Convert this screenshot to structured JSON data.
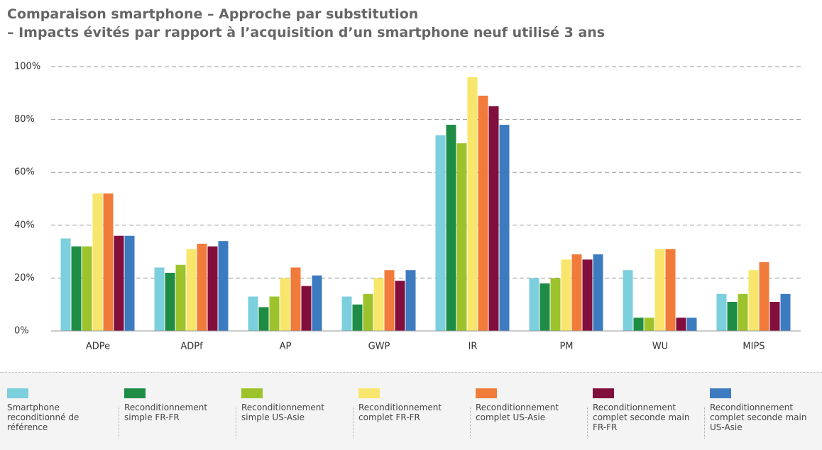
{
  "chart_data": {
    "type": "bar",
    "title": "Comparaison smartphone – Approche par substitution",
    "subtitle": "– Impacts évités par rapport à l’acquisition d’un smartphone neuf utilisé 3 ans",
    "categories": [
      "ADPe",
      "ADPf",
      "AP",
      "GWP",
      "IR",
      "PM",
      "WU",
      "MIPS"
    ],
    "series": [
      {
        "name": "Smartphone reconditionné de référence",
        "color": "#7ccfdc",
        "values": [
          35,
          24,
          13,
          13,
          74,
          20,
          23,
          14
        ]
      },
      {
        "name": "Reconditionnement simple FR-FR",
        "color": "#1e8c45",
        "values": [
          32,
          22,
          9,
          10,
          78,
          18,
          5,
          11
        ]
      },
      {
        "name": "Reconditionnement simple US-Asie",
        "color": "#9dc32c",
        "values": [
          32,
          25,
          13,
          14,
          71,
          20,
          5,
          14
        ]
      },
      {
        "name": "Reconditionnement complet FR-FR",
        "color": "#f7e66b",
        "values": [
          52,
          31,
          20,
          20,
          96,
          27,
          31,
          23
        ]
      },
      {
        "name": "Reconditionnement complet US-Asie",
        "color": "#f07b3b",
        "values": [
          52,
          33,
          24,
          23,
          89,
          29,
          31,
          26
        ]
      },
      {
        "name": "Reconditionnement complet seconde main FR-FR",
        "color": "#820e3e",
        "values": [
          36,
          32,
          17,
          19,
          85,
          27,
          5,
          11
        ]
      },
      {
        "name": "Reconditionnement complet seconde main US-Asie",
        "color": "#3d7bc1",
        "values": [
          36,
          34,
          21,
          23,
          78,
          29,
          5,
          14
        ]
      }
    ],
    "ylim": [
      0,
      100
    ],
    "yticks": [
      {
        "value": 0,
        "label": "0%"
      },
      {
        "value": 20,
        "label": "20%"
      },
      {
        "value": 40,
        "label": "40%"
      },
      {
        "value": 60,
        "label": "60%"
      },
      {
        "value": 80,
        "label": "80%"
      },
      {
        "value": 100,
        "label": "100%"
      }
    ],
    "grid": true
  }
}
